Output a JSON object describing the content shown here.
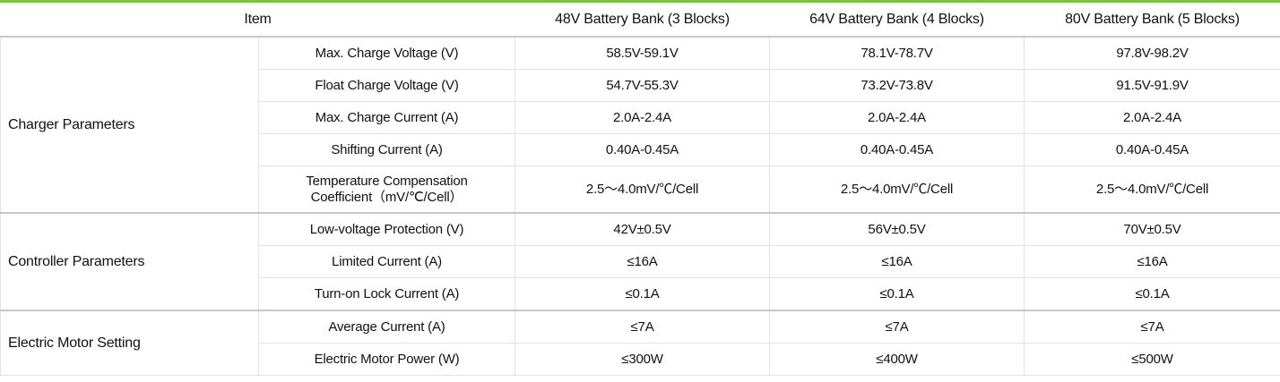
{
  "table": {
    "header": [
      "Item",
      "48V Battery Bank (3 Blocks)",
      "64V Battery Bank (4 Blocks)",
      "80V Battery Bank (5 Blocks)"
    ],
    "groups": [
      {
        "name": "Charger Parameters",
        "rows": [
          {
            "param": "Max. Charge Voltage (V)",
            "values": [
              "58.5V-59.1V",
              "78.1V-78.7V",
              "97.8V-98.2V"
            ]
          },
          {
            "param": "Float Charge Voltage (V)",
            "values": [
              "54.7V-55.3V",
              "73.2V-73.8V",
              "91.5V-91.9V"
            ]
          },
          {
            "param": "Max. Charge Current (A)",
            "values": [
              "2.0A-2.4A",
              "2.0A-2.4A",
              "2.0A-2.4A"
            ]
          },
          {
            "param": "Shifting Current (A)",
            "values": [
              "0.40A-0.45A",
              "0.40A-0.45A",
              "0.40A-0.45A"
            ]
          },
          {
            "param": [
              "Temperature Compensation",
              "Coefficient（mV/℃/Cell）"
            ],
            "values": [
              "2.5～4.0mV/℃/Cell",
              "2.5～4.0mV/℃/Cell",
              "2.5～4.0mV/℃/Cell"
            ]
          }
        ]
      },
      {
        "name": "Controller Parameters",
        "rows": [
          {
            "param": "Low-voltage Protection (V)",
            "values": [
              "42V±0.5V",
              "56V±0.5V",
              "70V±0.5V"
            ]
          },
          {
            "param": "Limited Current  (A)",
            "values": [
              "≤16A",
              "≤16A",
              "≤16A"
            ]
          },
          {
            "param": "Turn-on Lock Current (A)",
            "values": [
              "≤0.1A",
              "≤0.1A",
              "≤0.1A"
            ]
          }
        ]
      },
      {
        "name": "Electric Motor Setting",
        "rows": [
          {
            "param": "Average Current (A)",
            "values": [
              "≤7A",
              "≤7A",
              "≤7A"
            ]
          },
          {
            "param": "Electric Motor Power (W)",
            "values": [
              "≤300W",
              "≤400W",
              "≤500W"
            ]
          }
        ]
      }
    ]
  }
}
